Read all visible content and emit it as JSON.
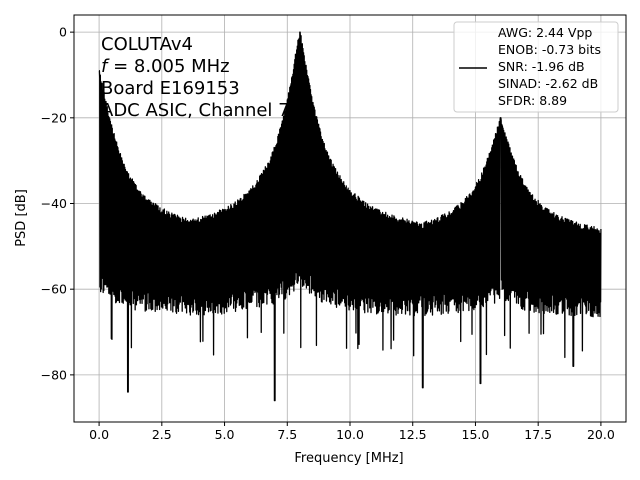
{
  "chart_data": {
    "type": "line",
    "xlabel": "Frequency [MHz]",
    "ylabel": "PSD [dB]",
    "xlim": [
      -1.0,
      21.0
    ],
    "ylim": [
      -91,
      4
    ],
    "xticks": [
      0.0,
      2.5,
      5.0,
      7.5,
      10.0,
      12.5,
      15.0,
      17.5,
      20.0
    ],
    "xtick_labels": [
      "0.0",
      "2.5",
      "5.0",
      "7.5",
      "10.0",
      "12.5",
      "15.0",
      "17.5",
      "20.0"
    ],
    "yticks": [
      0,
      -20,
      -40,
      -60,
      -80
    ],
    "ytick_labels": [
      "0",
      "−20",
      "−40",
      "−60",
      "−80"
    ],
    "grid": true,
    "annotation_lines": [
      "COLUTAv4",
      "f = 8.005 MHz",
      "Board E169153",
      "ADC ASIC, Channel 7"
    ],
    "annotation_parts": {
      "f_symbol": "f",
      "f_rest": " = 8.005 MHz"
    },
    "legend": {
      "placement": "top-right",
      "entries": [
        "AWG: 2.44 Vpp",
        "ENOB: -0.73 bits",
        "SNR: -1.96 dB",
        "SINAD: -2.62 dB",
        "SFDR: 8.89"
      ]
    },
    "series": [
      {
        "color": "#000000",
        "peaks": [
          {
            "x": 0.0,
            "y": -9
          },
          {
            "x": 8.005,
            "y": 0
          },
          {
            "x": 16.0,
            "y": -20
          }
        ],
        "floor_top": -49,
        "floor_bottom": -62,
        "deep_dips": [
          {
            "x": 1.15,
            "y": -84
          },
          {
            "x": 7.0,
            "y": -86
          },
          {
            "x": 12.9,
            "y": -83
          },
          {
            "x": 15.2,
            "y": -82
          },
          {
            "x": 18.9,
            "y": -78
          }
        ]
      }
    ]
  },
  "colors": {
    "line": "#000000",
    "grid": "#b0b0b0",
    "axes": "#000000",
    "legend_border": "#cccccc"
  }
}
